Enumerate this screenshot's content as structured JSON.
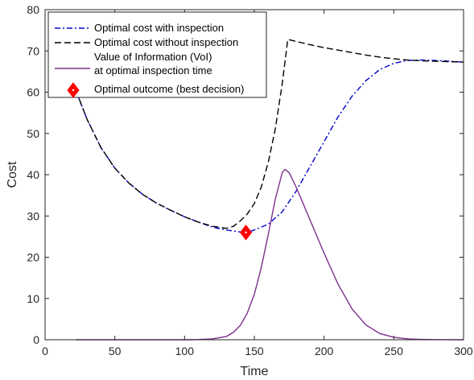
{
  "chart_data": {
    "type": "line",
    "title": "",
    "xlabel": "Time",
    "ylabel": "Cost",
    "xlim": [
      0,
      300
    ],
    "ylim": [
      0,
      80
    ],
    "xticks": [
      0,
      50,
      100,
      150,
      200,
      250,
      300
    ],
    "yticks": [
      0,
      10,
      20,
      30,
      40,
      50,
      60,
      70,
      80
    ],
    "grid": false,
    "legend_position": "top-left",
    "series": [
      {
        "name": "Optimal cost with inspection",
        "color": "#0000cc",
        "style": "dash-dot",
        "x": [
          22,
          30,
          40,
          50,
          60,
          70,
          80,
          90,
          100,
          110,
          120,
          130,
          140,
          145,
          150,
          160,
          170,
          180,
          190,
          200,
          210,
          220,
          230,
          240,
          250,
          260,
          270,
          280,
          290,
          300
        ],
        "y": [
          60.5,
          53.5,
          46.6,
          41.6,
          38.0,
          35.2,
          33.1,
          31.4,
          29.8,
          28.5,
          27.3,
          26.6,
          26.1,
          26.0,
          26.6,
          28.0,
          31.0,
          36.0,
          42.0,
          48.0,
          54.0,
          59.0,
          62.8,
          65.5,
          67.0,
          67.7,
          67.8,
          67.7,
          67.5,
          67.3
        ]
      },
      {
        "name": "Optimal cost without inspection",
        "color": "#000000",
        "style": "dashed",
        "x": [
          22,
          30,
          40,
          50,
          60,
          70,
          80,
          90,
          100,
          110,
          120,
          130,
          135,
          140,
          145,
          150,
          155,
          160,
          165,
          170,
          174,
          180,
          190,
          200,
          210,
          220,
          230,
          240,
          250,
          260,
          270,
          280,
          290,
          300
        ],
        "y": [
          60.5,
          53.5,
          46.6,
          41.6,
          38.0,
          35.2,
          33.1,
          31.4,
          29.8,
          28.5,
          27.5,
          27.0,
          27.5,
          28.8,
          30.5,
          33.0,
          37.0,
          43.0,
          51.0,
          62.0,
          72.8,
          72.3,
          71.5,
          70.8,
          70.2,
          69.6,
          69.0,
          68.5,
          68.1,
          67.8,
          67.6,
          67.5,
          67.4,
          67.3
        ]
      },
      {
        "name": "Value of Information (VoI) at optimal inspection time",
        "color": "#7e2f8e",
        "style": "solid",
        "x": [
          22,
          50,
          80,
          100,
          110,
          120,
          130,
          135,
          140,
          145,
          150,
          155,
          160,
          165,
          170,
          172,
          175,
          180,
          190,
          200,
          210,
          220,
          230,
          240,
          250,
          260,
          270,
          280,
          290,
          300
        ],
        "y": [
          0,
          0,
          0,
          0,
          0.05,
          0.2,
          0.8,
          1.8,
          3.5,
          6.5,
          11.0,
          17.5,
          25.5,
          34.0,
          40.5,
          41.3,
          40.5,
          37.0,
          29.0,
          21.0,
          13.5,
          7.5,
          3.6,
          1.5,
          0.6,
          0.2,
          0.08,
          0.03,
          0.01,
          0
        ]
      },
      {
        "name": "Optimal outcome (best decision)",
        "color": "#ff0000",
        "style": "marker-diamond",
        "x": [
          144
        ],
        "y": [
          26
        ]
      }
    ]
  },
  "legend": {
    "items": [
      {
        "lines": [
          "Optimal cost with inspection"
        ]
      },
      {
        "lines": [
          "Optimal cost without inspection"
        ]
      },
      {
        "lines": [
          "Value of Information (VoI)",
          "at optimal inspection time"
        ]
      },
      {
        "lines": [
          "Optimal outcome (best decision)"
        ]
      }
    ]
  }
}
